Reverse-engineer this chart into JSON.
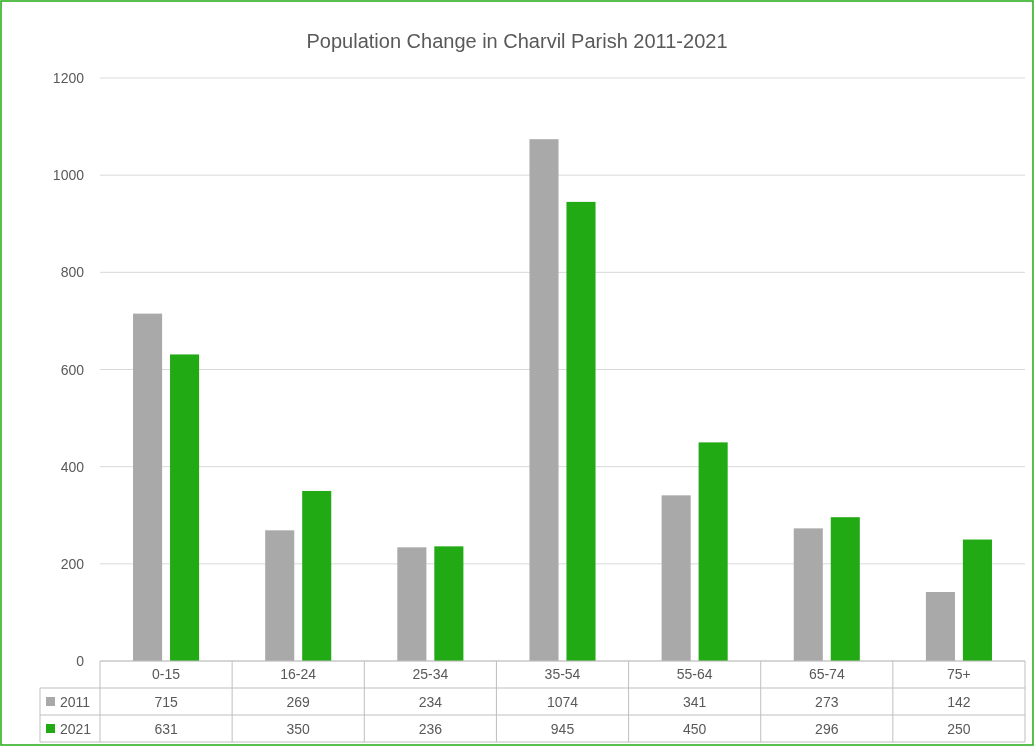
{
  "chart_data": {
    "type": "bar",
    "title": "Population Change in Charvil Parish 2011-2021",
    "categories": [
      "0-15",
      "16-24",
      "25-34",
      "35-54",
      "55-64",
      "65-74",
      "75+"
    ],
    "series": [
      {
        "name": "2011",
        "color": "#a9a9a9",
        "values": [
          715,
          269,
          234,
          1074,
          341,
          273,
          142
        ]
      },
      {
        "name": "2021",
        "color": "#22aa14",
        "values": [
          631,
          350,
          236,
          945,
          450,
          296,
          250
        ]
      }
    ],
    "ylim": [
      0,
      1200
    ],
    "yticks": [
      0,
      200,
      400,
      600,
      800,
      1000,
      1200
    ],
    "grid": "y",
    "legend": "bottom",
    "data_labels": true
  }
}
